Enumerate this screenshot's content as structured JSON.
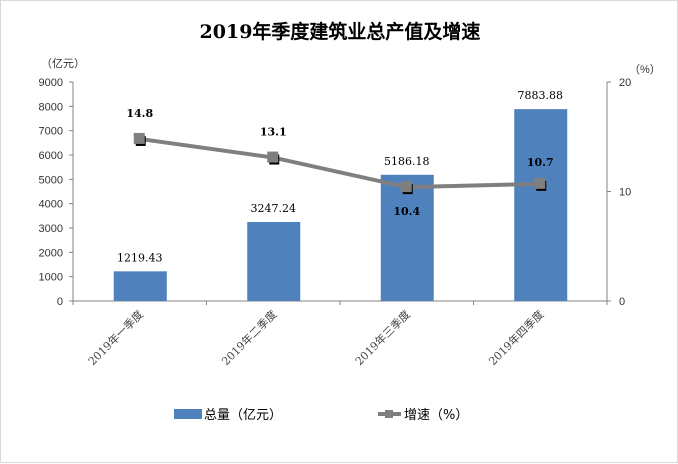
{
  "chart_data": {
    "type": "bar+line",
    "title": "2019年季度建筑业总产值及增速",
    "categories": [
      "2019年一季度",
      "2019年二季度",
      "2019年三季度",
      "2019年四季度"
    ],
    "series": [
      {
        "name": "总量（亿元）",
        "type": "bar",
        "axis": "left",
        "values": [
          1219.43,
          3247.24,
          5186.18,
          7883.88
        ],
        "labels": [
          "1219.43",
          "3247.24",
          "5186.18",
          "7883.88"
        ],
        "color": "#4f81bd"
      },
      {
        "name": "增速（%）",
        "type": "line",
        "axis": "right",
        "values": [
          14.8,
          13.1,
          10.4,
          10.7
        ],
        "labels": [
          "14.8",
          "13.1",
          "10.4",
          "10.7"
        ],
        "color": "#7f7f7f"
      }
    ],
    "left_axis": {
      "label": "（亿元）",
      "ylim": [
        0,
        9000
      ],
      "ticks": [
        "0",
        "1000",
        "2000",
        "3000",
        "4000",
        "5000",
        "6000",
        "7000",
        "8000",
        "9000"
      ]
    },
    "right_axis": {
      "label": "（%）",
      "ylim": [
        0,
        20
      ],
      "ticks": [
        "0",
        "10",
        "20"
      ]
    },
    "legend": "bottom",
    "grid": false
  }
}
